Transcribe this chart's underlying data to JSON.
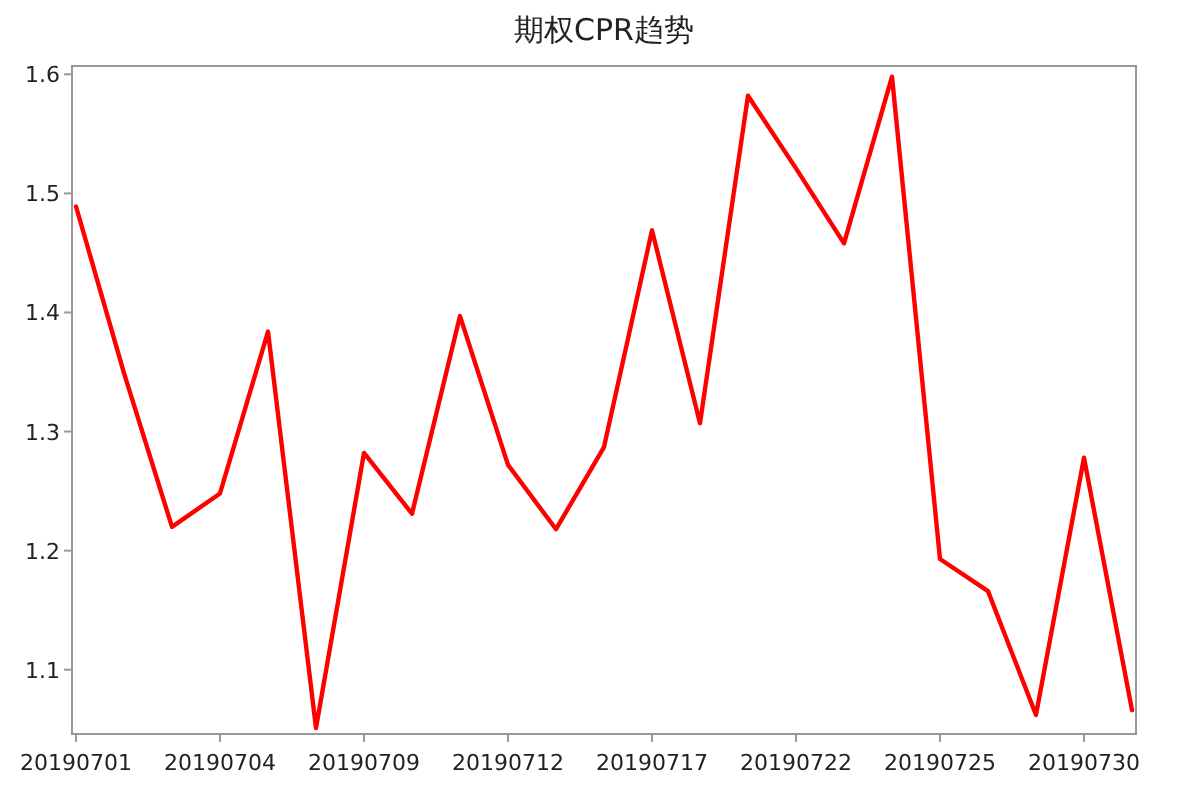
{
  "chart_data": {
    "type": "line",
    "title": "期权CPR趋势",
    "categories": [
      "20190701",
      null,
      null,
      "20190704",
      null,
      null,
      "20190709",
      null,
      null,
      "20190712",
      null,
      null,
      "20190717",
      null,
      null,
      "20190722",
      null,
      null,
      "20190725",
      null,
      null,
      "20190730",
      null
    ],
    "series": [
      {
        "color": "#ff0000",
        "values": [
          1.489,
          1.349,
          1.22,
          1.248,
          1.384,
          1.051,
          1.282,
          1.231,
          1.397,
          1.272,
          1.218,
          1.287,
          1.469,
          1.307,
          1.582,
          1.521,
          1.458,
          1.598,
          1.193,
          1.166,
          1.062,
          1.278,
          1.066
        ]
      }
    ],
    "ylim": [
      1.046,
      1.607
    ],
    "yticks": [
      1.1,
      1.2,
      1.3,
      1.4,
      1.5,
      1.6
    ],
    "grid": false
  }
}
